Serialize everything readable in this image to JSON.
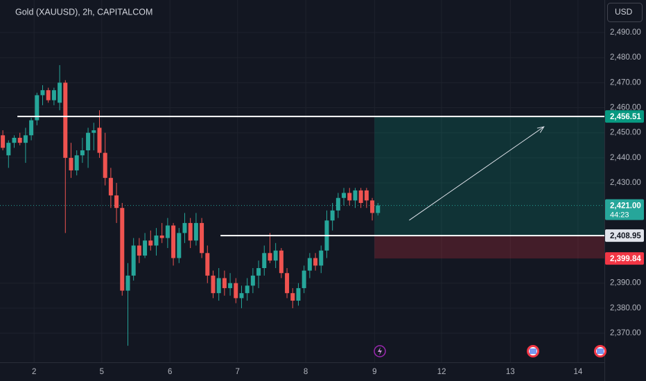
{
  "chart_data": {
    "type": "candlestick",
    "title": "Gold (XAUUSD), 2h, CAPITALCOM",
    "currency": "USD",
    "x": [
      0,
      1,
      2,
      3,
      4,
      5,
      6,
      7,
      8,
      9,
      10,
      11,
      12,
      13,
      14,
      15,
      16,
      17,
      18,
      19,
      20,
      21,
      22,
      23,
      24,
      25,
      26,
      27,
      28,
      29,
      30,
      31,
      32,
      33,
      34,
      35,
      36,
      37,
      38,
      39,
      40,
      41,
      42,
      43,
      44,
      45,
      46,
      47,
      48,
      49,
      50,
      51,
      52,
      53,
      54,
      55,
      56,
      57,
      58,
      59,
      60,
      61,
      62,
      63,
      64,
      65,
      66
    ],
    "open": [
      2449,
      2441,
      2446,
      2448,
      2446,
      2449,
      2455,
      2465,
      2467,
      2463,
      2462,
      2470,
      2440,
      2435,
      2441,
      2443,
      2450,
      2452,
      2442,
      2432,
      2425,
      2420,
      2387,
      2393,
      2405,
      2401,
      2407,
      2405,
      2409,
      2408,
      2413,
      2400,
      2410,
      2414,
      2407,
      2414,
      2402,
      2393,
      2386,
      2392,
      2388,
      2390,
      2384,
      2386,
      2389,
      2393,
      2396,
      2402,
      2399,
      2403,
      2394,
      2386,
      2383,
      2388,
      2395,
      2400,
      2397,
      2403,
      2415,
      2419,
      2424,
      2426,
      2423,
      2427,
      2427,
      2423,
      2418
    ],
    "high": [
      2451,
      2447,
      2449,
      2450,
      2452,
      2456,
      2466,
      2469,
      2468,
      2468,
      2477,
      2471,
      2446,
      2443,
      2448,
      2452,
      2454,
      2459,
      2450,
      2436,
      2430,
      2422,
      2398,
      2408,
      2408,
      2410,
      2411,
      2412,
      2414,
      2416,
      2414,
      2412,
      2418,
      2416,
      2418,
      2416,
      2405,
      2395,
      2396,
      2395,
      2394,
      2392,
      2389,
      2392,
      2396,
      2399,
      2405,
      2410,
      2406,
      2404,
      2396,
      2388,
      2390,
      2397,
      2402,
      2402,
      2405,
      2419,
      2422,
      2426,
      2428,
      2428,
      2428,
      2428,
      2428,
      2424,
      2422
    ],
    "low": [
      2443,
      2436,
      2444,
      2445,
      2438,
      2447,
      2453,
      2461,
      2462,
      2461,
      2459,
      2410,
      2432,
      2433,
      2438,
      2436,
      2443,
      2440,
      2429,
      2420,
      2414,
      2385,
      2365,
      2391,
      2398,
      2400,
      2403,
      2401,
      2406,
      2404,
      2397,
      2398,
      2406,
      2404,
      2405,
      2400,
      2390,
      2384,
      2383,
      2385,
      2385,
      2382,
      2380,
      2383,
      2386,
      2388,
      2393,
      2398,
      2396,
      2392,
      2384,
      2380,
      2381,
      2386,
      2392,
      2395,
      2394,
      2400,
      2411,
      2416,
      2421,
      2421,
      2420,
      2420,
      2420,
      2415,
      2417
    ],
    "close": [
      2444,
      2446,
      2448,
      2446,
      2449,
      2455,
      2465,
      2467,
      2463,
      2467,
      2470,
      2440,
      2435,
      2441,
      2443,
      2450,
      2451,
      2442,
      2432,
      2425,
      2420,
      2387,
      2393,
      2405,
      2401,
      2407,
      2405,
      2409,
      2408,
      2413,
      2400,
      2410,
      2414,
      2407,
      2414,
      2402,
      2393,
      2386,
      2392,
      2388,
      2390,
      2384,
      2386,
      2389,
      2393,
      2396,
      2402,
      2399,
      2403,
      2394,
      2386,
      2383,
      2388,
      2395,
      2400,
      2397,
      2403,
      2415,
      2419,
      2424,
      2426,
      2423,
      2427,
      2422,
      2423,
      2418,
      2421
    ],
    "up_color": "#26a69a",
    "down_color": "#ef5350",
    "xlim": [
      -0.5,
      105.85
    ],
    "ylim": [
      2358.4,
      2503.0
    ],
    "xticks": [
      {
        "value": 5.5,
        "label": "2"
      },
      {
        "value": 17.4,
        "label": "5"
      },
      {
        "value": 29.4,
        "label": "6"
      },
      {
        "value": 41.3,
        "label": "7"
      },
      {
        "value": 53.3,
        "label": "8"
      },
      {
        "value": 65.4,
        "label": "9"
      },
      {
        "value": 77.2,
        "label": "12"
      },
      {
        "value": 89.3,
        "label": "13"
      },
      {
        "value": 101.2,
        "label": "14"
      }
    ],
    "yticks": [
      {
        "value": 2370,
        "label": "2,370.00"
      },
      {
        "value": 2380,
        "label": "2,380.00"
      },
      {
        "value": 2390,
        "label": "2,390.00"
      },
      {
        "value": 2430,
        "label": "2,430.00"
      },
      {
        "value": 2440,
        "label": "2,440.00"
      },
      {
        "value": 2450,
        "label": "2,450.00"
      },
      {
        "value": 2460,
        "label": "2,460.00"
      },
      {
        "value": 2470,
        "label": "2,470.00"
      },
      {
        "value": 2480,
        "label": "2,480.00"
      },
      {
        "value": 2490,
        "label": "2,490.00"
      }
    ],
    "grid": true,
    "current_price": {
      "value": 2421.0,
      "label": "2,421.00",
      "countdown": "44:23",
      "color": "#26a69a"
    },
    "levels": [
      {
        "value": 2456.51,
        "from": 2.56
      },
      {
        "value": 2408.95,
        "from": 38.3
      }
    ],
    "position": {
      "start": 65.4,
      "target": {
        "value": 2456.51,
        "label": "2,456.51",
        "color": "#089981"
      },
      "entry": {
        "value": 2408.95,
        "label": "2,408.95",
        "color": "#e0e3eb"
      },
      "stop": {
        "value": 2399.84,
        "label": "2,399.84",
        "color": "#f23645"
      }
    },
    "arrow": {
      "x": [
        71.5,
        95.2
      ],
      "y": [
        2415.1,
        2452.4
      ]
    }
  }
}
